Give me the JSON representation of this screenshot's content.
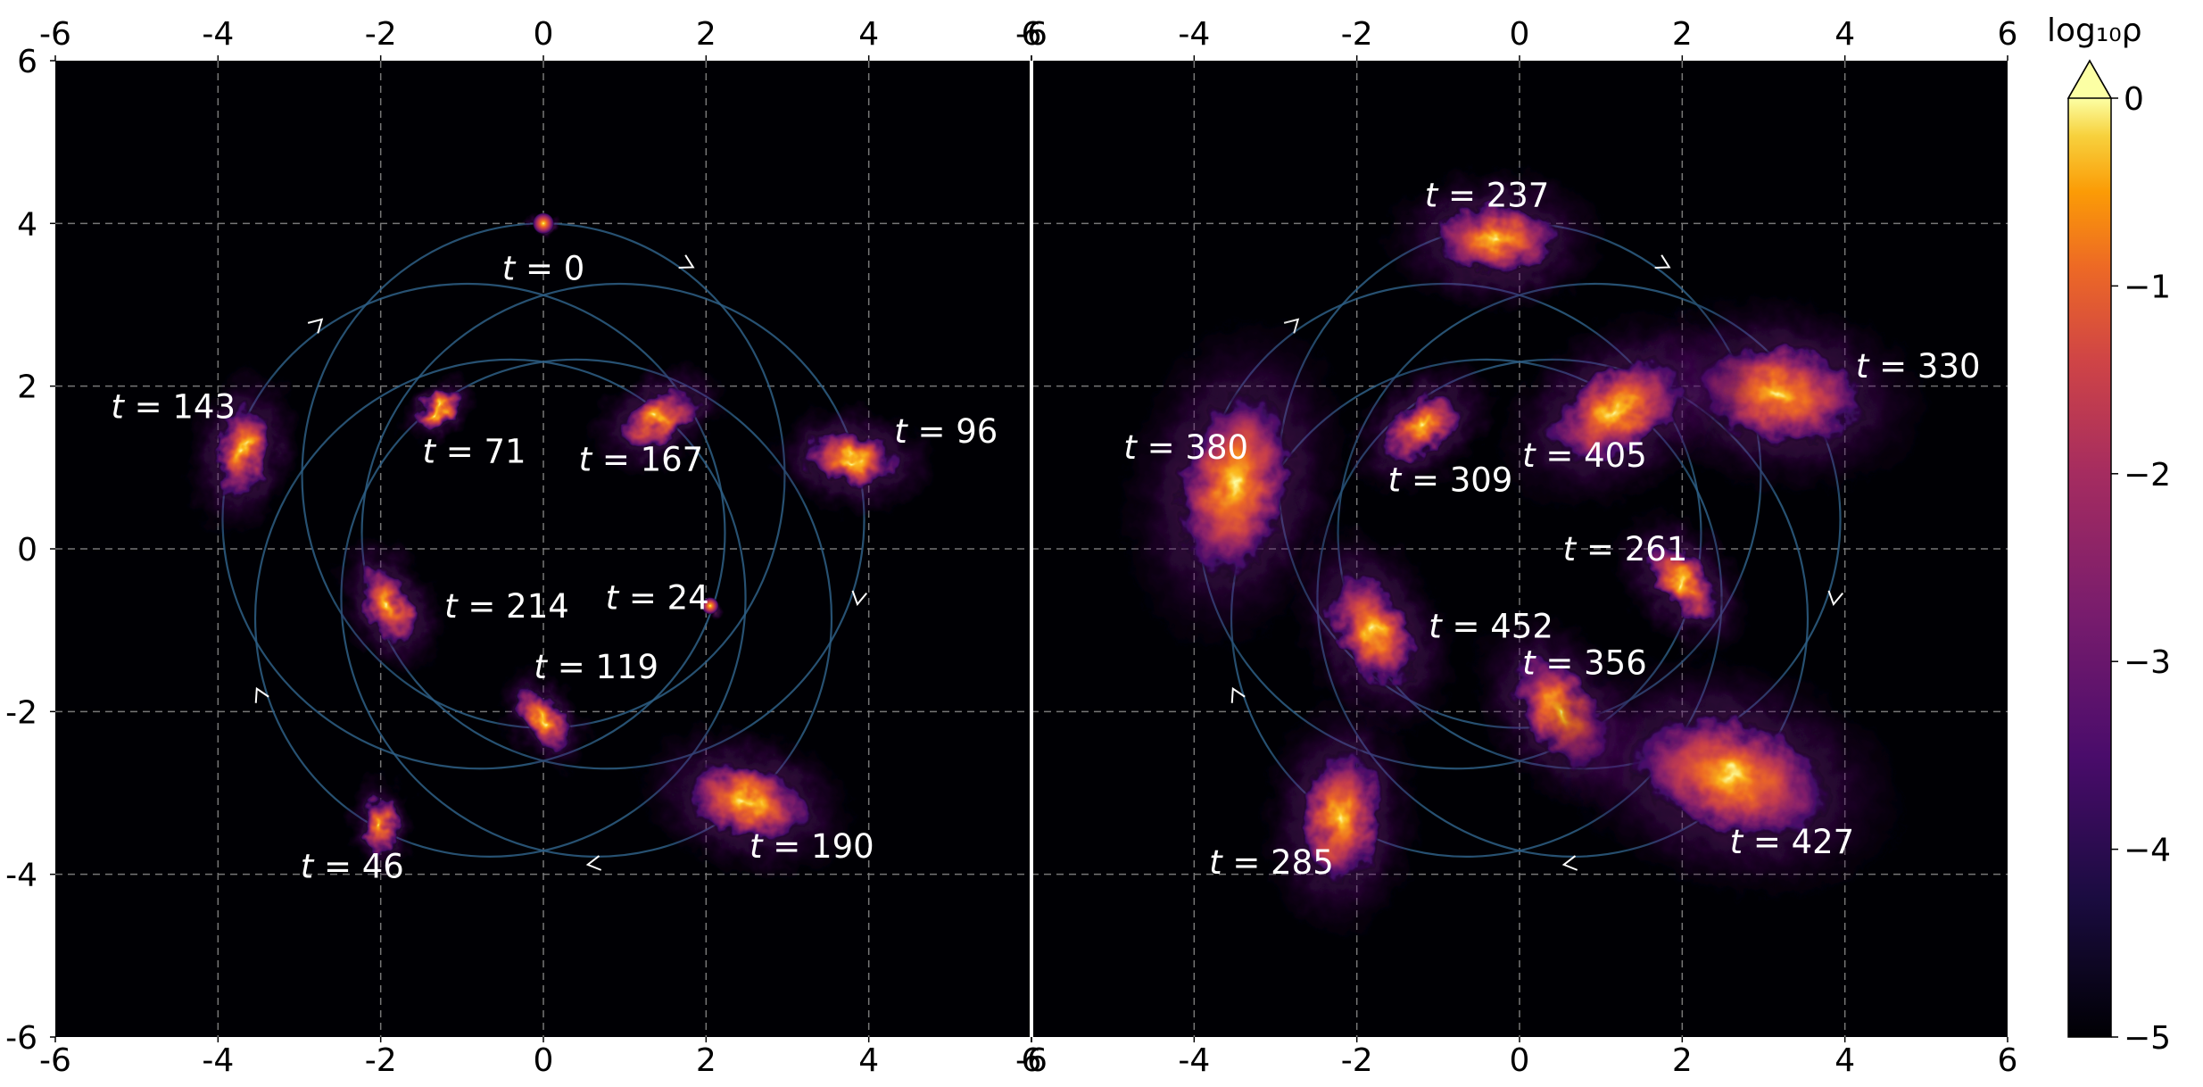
{
  "chart_data": {
    "type": "heatmap",
    "colormap": "inferno",
    "grid": true,
    "colorbar": {
      "label": "log₁₀ρ",
      "range": [
        -5,
        0
      ],
      "ticks": [
        "0",
        "−1",
        "−2",
        "−3",
        "−4",
        "−5"
      ],
      "extend": "max"
    },
    "panels": [
      {
        "xlim": [
          -6,
          6
        ],
        "ylim": [
          -6,
          6
        ],
        "x_ticks": [
          "-6",
          "-4",
          "-2",
          "0",
          "2",
          "4",
          "6"
        ],
        "y_ticks": [
          "6",
          "4",
          "2",
          "0",
          "-2",
          "-4",
          "-6"
        ],
        "snapshots": [
          {
            "t_label": "t = 0",
            "x": 0.0,
            "y": 4.0,
            "size": 0.15,
            "spread": "compact"
          },
          {
            "t_label": "t = 24",
            "x": 2.05,
            "y": -0.7,
            "size": 0.12,
            "spread": "compact"
          },
          {
            "t_label": "t = 46",
            "x": -2.0,
            "y": -3.4,
            "size": 0.3,
            "spread": "small"
          },
          {
            "t_label": "t = 71",
            "x": -1.3,
            "y": 1.7,
            "size": 0.25,
            "spread": "small"
          },
          {
            "t_label": "t = 96",
            "x": 3.8,
            "y": 1.1,
            "size": 0.45,
            "spread": "medium"
          },
          {
            "t_label": "t = 119",
            "x": 0.0,
            "y": -2.1,
            "size": 0.35,
            "spread": "small"
          },
          {
            "t_label": "t = 143",
            "x": -3.7,
            "y": 1.2,
            "size": 0.45,
            "spread": "medium"
          },
          {
            "t_label": "t = 167",
            "x": 1.4,
            "y": 1.6,
            "size": 0.4,
            "spread": "medium"
          },
          {
            "t_label": "t = 190",
            "x": 2.5,
            "y": -3.1,
            "size": 0.6,
            "spread": "large"
          },
          {
            "t_label": "t = 214",
            "x": -1.9,
            "y": -0.7,
            "size": 0.4,
            "spread": "medium"
          }
        ]
      },
      {
        "xlim": [
          -6,
          6
        ],
        "ylim": [
          -6,
          6
        ],
        "x_ticks": [
          "-6",
          "-4",
          "-2",
          "0",
          "2",
          "4",
          "6"
        ],
        "snapshots": [
          {
            "t_label": "t = 237",
            "x": -0.3,
            "y": 3.8,
            "size": 0.6,
            "spread": "large"
          },
          {
            "t_label": "t = 261",
            "x": 2.0,
            "y": -0.4,
            "size": 0.45,
            "spread": "medium"
          },
          {
            "t_label": "t = 285",
            "x": -2.2,
            "y": -3.3,
            "size": 0.65,
            "spread": "large"
          },
          {
            "t_label": "t = 309",
            "x": -1.2,
            "y": 1.5,
            "size": 0.45,
            "spread": "medium"
          },
          {
            "t_label": "t = 330",
            "x": 3.2,
            "y": 1.9,
            "size": 0.8,
            "spread": "large"
          },
          {
            "t_label": "t = 356",
            "x": 0.5,
            "y": -2.0,
            "size": 0.6,
            "spread": "large"
          },
          {
            "t_label": "t = 380",
            "x": -3.5,
            "y": 0.8,
            "size": 0.9,
            "spread": "large"
          },
          {
            "t_label": "t = 405",
            "x": 1.2,
            "y": 1.7,
            "size": 0.7,
            "spread": "large"
          },
          {
            "t_label": "t = 427",
            "x": 2.6,
            "y": -2.8,
            "size": 0.95,
            "spread": "large"
          },
          {
            "t_label": "t = 452",
            "x": -1.8,
            "y": -1.0,
            "size": 0.6,
            "spread": "large"
          }
        ]
      }
    ],
    "orbit": {
      "type": "rosette",
      "apocenter": 4.0,
      "pericenter": 2.2,
      "direction": "clockwise"
    }
  }
}
